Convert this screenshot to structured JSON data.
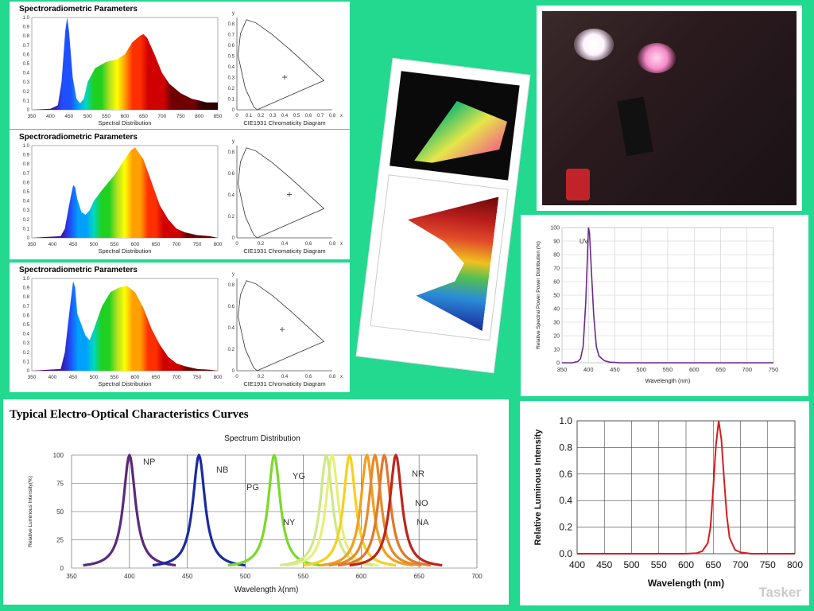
{
  "panels": {
    "spectro": [
      {
        "title": "Spectroradiometric Parameters",
        "spectral_caption": "Spectral Distribution",
        "cie_caption": "CIE1931 Chromaticity Diagram",
        "x_ticks": [
          "350",
          "400",
          "450",
          "500",
          "550",
          "600",
          "650",
          "700",
          "750",
          "800",
          "850"
        ],
        "y_ticks": [
          "0",
          "0.1",
          "0.2",
          "0.3",
          "0.4",
          "0.5",
          "0.6",
          "0.7",
          "0.8",
          "0.9",
          "1.0"
        ],
        "cie_x_ticks": [
          "0",
          "0.1",
          "0.2",
          "0.3",
          "0.4",
          "0.5",
          "0.6",
          "0.7",
          "0.8"
        ],
        "cie_y_ticks": [
          "0",
          "0.1",
          "0.2",
          "0.3",
          "0.4",
          "0.5",
          "0.6",
          "0.7",
          "0.8"
        ],
        "cie_x_label": "x",
        "cie_y_label": "y"
      },
      {
        "title": "Spectroradiometric Parameters",
        "spectral_caption": "Spectral Distribution",
        "cie_caption": "CIE1931 Chromaticity Diagram",
        "x_ticks": [
          "350",
          "400",
          "450",
          "500",
          "550",
          "600",
          "650",
          "700",
          "750",
          "800"
        ],
        "y_ticks": [
          "0",
          "0.1",
          "0.2",
          "0.3",
          "0.4",
          "0.5",
          "0.6",
          "0.7",
          "0.8",
          "0.9",
          "1.0"
        ],
        "cie_x_ticks": [
          "0",
          "0.2",
          "0.4",
          "0.6",
          "0.8"
        ],
        "cie_y_ticks": [
          "0",
          "0.2",
          "0.4",
          "0.6",
          "0.8"
        ],
        "cie_x_label": "x",
        "cie_y_label": "y"
      },
      {
        "title": "Spectroradiometric Parameters",
        "spectral_caption": "Spectral Distribution",
        "cie_caption": "CIE1931 Chromaticity Diagram",
        "x_ticks": [
          "350",
          "400",
          "450",
          "500",
          "550",
          "600",
          "650",
          "700",
          "750",
          "800"
        ],
        "y_ticks": [
          "0",
          "0.1",
          "0.2",
          "0.3",
          "0.4",
          "0.5",
          "0.6",
          "0.7",
          "0.8",
          "0.9",
          "1.0"
        ],
        "cie_x_ticks": [
          "0",
          "0.2",
          "0.4",
          "0.6",
          "0.8"
        ],
        "cie_y_ticks": [
          "0",
          "0.2",
          "0.4",
          "0.6",
          "0.8"
        ],
        "cie_x_label": "x",
        "cie_y_label": "y"
      }
    ],
    "photo_caption": "",
    "uv_panel": {
      "series_label": "UV",
      "ylabel": "Relative Spectral Power Power Distribution (%)",
      "xlabel": "Wavelength (nm)"
    },
    "typical": {
      "title": "Typical Electro-Optical Characteristics Curves",
      "subtitle": "Spectrum Distribution",
      "ylabel": "Relative Luminous Intensity(%)",
      "xlabel": "Wavelength  λ(nm)"
    },
    "red_panel": {
      "ylabel": "Relative Luminous Intensity",
      "xlabel": "Wavelength (nm)"
    },
    "watermark": "Tasker"
  },
  "chart_data": [
    {
      "type": "area",
      "spectral_x": [
        350,
        400,
        420,
        430,
        440,
        445,
        450,
        460,
        470,
        480,
        490,
        500,
        520,
        550,
        580,
        600,
        620,
        640,
        650,
        660,
        680,
        700,
        720,
        750,
        780,
        800,
        820,
        850
      ],
      "spectral_y": [
        0.0,
        0.01,
        0.05,
        0.3,
        0.85,
        1.0,
        0.85,
        0.35,
        0.12,
        0.07,
        0.12,
        0.3,
        0.45,
        0.52,
        0.55,
        0.6,
        0.73,
        0.8,
        0.82,
        0.78,
        0.6,
        0.4,
        0.28,
        0.18,
        0.12,
        0.1,
        0.08,
        0.08
      ],
      "xlim": [
        350,
        850
      ],
      "ylim": [
        0,
        1.0
      ],
      "cie_point": [
        0.4,
        0.3
      ]
    },
    {
      "type": "area",
      "spectral_x": [
        350,
        420,
        430,
        440,
        450,
        455,
        460,
        470,
        480,
        490,
        500,
        520,
        550,
        570,
        590,
        600,
        620,
        640,
        660,
        680,
        700,
        720,
        750,
        780,
        800
      ],
      "spectral_y": [
        0.0,
        0.02,
        0.1,
        0.35,
        0.57,
        0.55,
        0.42,
        0.28,
        0.25,
        0.3,
        0.4,
        0.52,
        0.68,
        0.82,
        0.95,
        0.98,
        0.85,
        0.6,
        0.35,
        0.2,
        0.1,
        0.06,
        0.03,
        0.02,
        0.0
      ],
      "xlim": [
        350,
        800
      ],
      "ylim": [
        0,
        1.0
      ],
      "cie_point": [
        0.44,
        0.4
      ]
    },
    {
      "type": "area",
      "spectral_x": [
        350,
        420,
        430,
        440,
        450,
        455,
        460,
        470,
        480,
        490,
        500,
        520,
        540,
        560,
        580,
        600,
        620,
        640,
        660,
        680,
        700,
        720,
        750,
        780,
        800
      ],
      "spectral_y": [
        0.0,
        0.02,
        0.2,
        0.6,
        0.97,
        0.9,
        0.62,
        0.5,
        0.38,
        0.33,
        0.45,
        0.7,
        0.85,
        0.9,
        0.92,
        0.85,
        0.68,
        0.45,
        0.28,
        0.15,
        0.08,
        0.05,
        0.02,
        0.01,
        0.0
      ],
      "xlim": [
        350,
        800
      ],
      "ylim": [
        0,
        1.0
      ],
      "cie_point": [
        0.38,
        0.38
      ]
    },
    {
      "type": "line",
      "title": "",
      "xlabel": "Wavelength (nm)",
      "ylabel": "Relative Spectral Power Power Distribution (%)",
      "x_ticks": [
        350,
        400,
        450,
        500,
        550,
        600,
        650,
        700,
        750
      ],
      "y_ticks": [
        0,
        10,
        20,
        30,
        40,
        50,
        60,
        70,
        80,
        90,
        100
      ],
      "xlim": [
        350,
        750
      ],
      "ylim": [
        0,
        100
      ],
      "series": [
        {
          "name": "UV",
          "x": [
            350,
            370,
            380,
            385,
            390,
            395,
            400,
            402,
            405,
            410,
            415,
            420,
            430,
            440,
            460,
            500,
            750
          ],
          "y": [
            0,
            0,
            1,
            3,
            12,
            45,
            100,
            96,
            72,
            35,
            12,
            5,
            1.5,
            0.5,
            0,
            0,
            0
          ]
        }
      ]
    },
    {
      "type": "line",
      "title": "Spectrum Distribution",
      "xlabel": "Wavelength  λ(nm)",
      "ylabel": "Relative Luminous Intensity(%)",
      "x_ticks": [
        350,
        400,
        450,
        500,
        550,
        600,
        650,
        700
      ],
      "y_ticks": [
        0,
        25,
        50,
        75,
        100
      ],
      "xlim": [
        350,
        700
      ],
      "ylim": [
        0,
        100
      ],
      "series": [
        {
          "name": "NP",
          "peak": 400,
          "color": "#5a2a7a"
        },
        {
          "name": "NB",
          "peak": 460,
          "color": "#1a2aa0"
        },
        {
          "name": "PG",
          "peak": 525,
          "color": "#7ad92a"
        },
        {
          "name": "NY",
          "peak": 575,
          "color": "#e6f07a"
        },
        {
          "name": "YG",
          "peak": 570,
          "color": "#cfe88a"
        },
        {
          "name": "",
          "peak": 590,
          "color": "#f5d020"
        },
        {
          "name": "",
          "peak": 605,
          "color": "#f0a020"
        },
        {
          "name": "NO",
          "peak": 612,
          "color": "#e68a2a"
        },
        {
          "name": "NA",
          "peak": 620,
          "color": "#e0782a"
        },
        {
          "name": "NR",
          "peak": 630,
          "color": "#c0241c"
        }
      ]
    },
    {
      "type": "line",
      "title": "",
      "xlabel": "Wavelength (nm)",
      "ylabel": "Relative Luminous Intensity",
      "x_ticks": [
        400,
        450,
        500,
        550,
        600,
        650,
        700,
        750,
        800
      ],
      "y_ticks": [
        "0.0",
        "0.2",
        "0.4",
        "0.6",
        "0.8",
        "1.0"
      ],
      "xlim": [
        400,
        800
      ],
      "ylim": [
        0,
        1.0
      ],
      "series": [
        {
          "name": "",
          "x": [
            400,
            600,
            620,
            630,
            640,
            645,
            650,
            655,
            660,
            665,
            670,
            675,
            680,
            690,
            700,
            720,
            800
          ],
          "y": [
            0,
            0,
            0.005,
            0.02,
            0.08,
            0.2,
            0.5,
            0.82,
            1.0,
            0.86,
            0.55,
            0.28,
            0.12,
            0.03,
            0.01,
            0,
            0
          ],
          "color": "#d21e1e"
        }
      ]
    }
  ]
}
